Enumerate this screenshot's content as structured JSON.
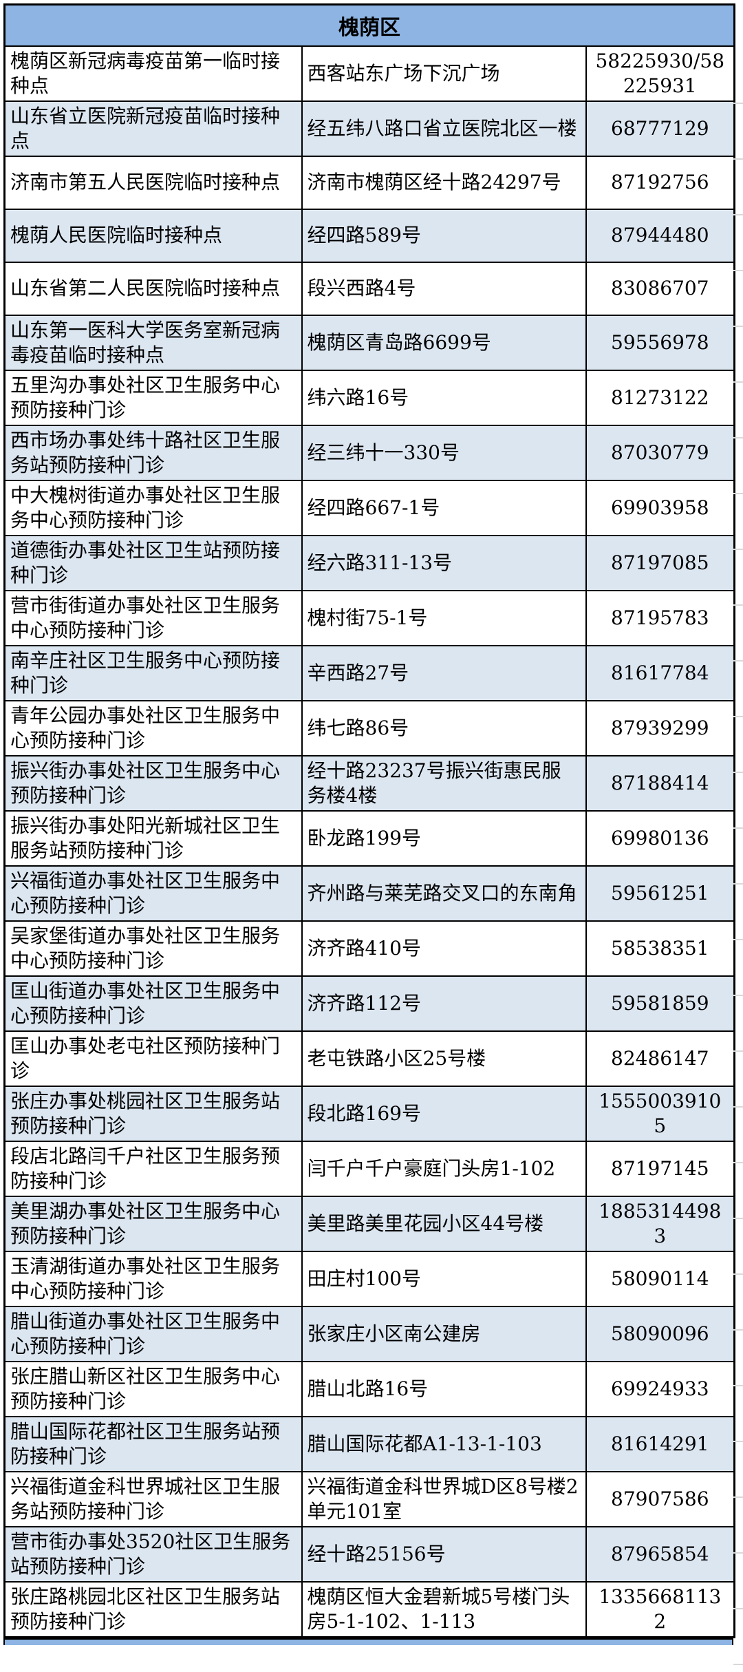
{
  "district": "槐荫区",
  "colors": {
    "header_bg": "#8DB4E2",
    "row_alt_bg": "#DCE6F1",
    "border": "#000000"
  },
  "rows": [
    {
      "name": "槐荫区新冠病毒疫苗第一临时接种点",
      "address": "西客站东广场下沉广场",
      "phone": "58225930/58225931"
    },
    {
      "name": "山东省立医院新冠疫苗临时接种点",
      "address": "经五纬八路口省立医院北区一楼",
      "phone": "68777129"
    },
    {
      "name": "济南市第五人民医院临时接种点",
      "address": "济南市槐荫区经十路24297号",
      "phone": "87192756"
    },
    {
      "name": "槐荫人民医院临时接种点",
      "address": "经四路589号",
      "phone": "87944480"
    },
    {
      "name": "山东省第二人民医院临时接种点",
      "address": "段兴西路4号",
      "phone": "83086707"
    },
    {
      "name": "山东第一医科大学医务室新冠病毒疫苗临时接种点",
      "address": "槐荫区青岛路6699号",
      "phone": "59556978"
    },
    {
      "name": "五里沟办事处社区卫生服务中心预防接种门诊",
      "address": "纬六路16号",
      "phone": "81273122"
    },
    {
      "name": "西市场办事处纬十路社区卫生服务站预防接种门诊",
      "address": "经三纬十一330号",
      "phone": "87030779"
    },
    {
      "name": "中大槐树街道办事处社区卫生服务中心预防接种门诊",
      "address": "经四路667-1号",
      "phone": "69903958"
    },
    {
      "name": "道德街办事处社区卫生站预防接种门诊",
      "address": "经六路311-13号",
      "phone": "87197085"
    },
    {
      "name": "营市街街道办事处社区卫生服务中心预防接种门诊",
      "address": "槐村街75-1号",
      "phone": "87195783"
    },
    {
      "name": "南辛庄社区卫生服务中心预防接种门诊",
      "address": "辛西路27号",
      "phone": "81617784"
    },
    {
      "name": "青年公园办事处社区卫生服务中心预防接种门诊",
      "address": "纬七路86号",
      "phone": "87939299"
    },
    {
      "name": "振兴街办事处社区卫生服务中心预防接种门诊",
      "address": "经十路23237号振兴街惠民服务楼4楼",
      "phone": "87188414"
    },
    {
      "name": "振兴街办事处阳光新城社区卫生服务站预防接种门诊",
      "address": "卧龙路199号",
      "phone": "69980136"
    },
    {
      "name": "兴福街道办事处社区卫生服务中心预防接种门诊",
      "address": "齐州路与莱芜路交叉口的东南角",
      "phone": "59561251"
    },
    {
      "name": "吴家堡街道办事处社区卫生服务中心预防接种门诊",
      "address": "济齐路410号",
      "phone": "58538351"
    },
    {
      "name": "匡山街道办事处社区卫生服务中心预防接种门诊",
      "address": "济齐路112号",
      "phone": "59581859"
    },
    {
      "name": "匡山办事处老屯社区预防接种门诊",
      "address": "老屯铁路小区25号楼",
      "phone": "82486147"
    },
    {
      "name": "张庄办事处桃园社区卫生服务站预防接种门诊",
      "address": "段北路169号",
      "phone": "15550039105"
    },
    {
      "name": "段店北路闫千户社区卫生服务预防接种门诊",
      "address": "闫千户千户豪庭门头房1-102",
      "phone": "87197145"
    },
    {
      "name": "美里湖办事处社区卫生服务中心预防接种门诊",
      "address": "美里路美里花园小区44号楼",
      "phone": "18853144983"
    },
    {
      "name": "玉清湖街道办事处社区卫生服务中心预防接种门诊",
      "address": "田庄村100号",
      "phone": "58090114"
    },
    {
      "name": "腊山街道办事处社区卫生服务中心预防接种门诊",
      "address": "张家庄小区南公建房",
      "phone": "58090096"
    },
    {
      "name": "张庄腊山新区社区卫生服务中心预防接种门诊",
      "address": "腊山北路16号",
      "phone": "69924933"
    },
    {
      "name": "腊山国际花都社区卫生服务站预防接种门诊",
      "address": "腊山国际花都A1-13-1-103",
      "phone": "81614291"
    },
    {
      "name": "兴福街道金科世界城社区卫生服务站预防接种门诊",
      "address": "兴福街道金科世界城D区8号楼2单元101室",
      "phone": "87907586"
    },
    {
      "name": "营市街办事处3520社区卫生服务站预防接种门诊",
      "address": "经十路25156号",
      "phone": "87965854"
    },
    {
      "name": "张庄路桃园北区社区卫生服务站预防接种门诊",
      "address": "槐荫区恒大金碧新城5号楼门头房5-1-102、1-113",
      "phone": "13356681132"
    }
  ]
}
